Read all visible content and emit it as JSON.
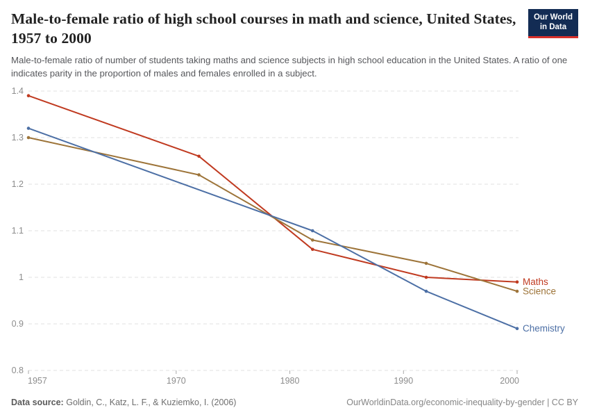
{
  "logo": {
    "line1": "Our World",
    "line2": "in Data"
  },
  "header": {
    "title": "Male-to-female ratio of high school courses in math and science, United States, 1957 to 2000",
    "subtitle": "Male-to-female ratio of number of students taking maths and science subjects in high school education in the United States. A ratio of one indicates parity in the proportion of males and females enrolled in a subject."
  },
  "footer": {
    "source_label": "Data source:",
    "source_text": "Goldin, C., Katz, L. F., & Kuziemko, I. (2006)",
    "credit": "OurWorldinData.org/economic-inequality-by-gender | CC BY"
  },
  "colors": {
    "logo_navy": "#132c54",
    "logo_red": "#d8302b",
    "grid": "#e2e2e2",
    "tick_mark": "#aaaaaa",
    "tick_text": "#8c8c8c",
    "title_text": "#222222",
    "subtitle_text": "#56575b"
  },
  "chart_data": {
    "type": "line",
    "title": "Male-to-female ratio of high school courses in math and science, United States, 1957 to 2000",
    "xlabel": "",
    "ylabel": "",
    "xlim": [
      1957,
      2000
    ],
    "ylim": [
      0.8,
      1.4
    ],
    "xticks": [
      1957,
      1970,
      1980,
      1990,
      2000
    ],
    "yticks": [
      0.8,
      0.9,
      1,
      1.1,
      1.2,
      1.3,
      1.4
    ],
    "grid": "horizontal-dashed",
    "legend_position": "end-of-line-labels",
    "series": [
      {
        "name": "Maths",
        "color": "#c03a20",
        "points": [
          [
            1957,
            1.39
          ],
          [
            1972,
            1.26
          ],
          [
            1982,
            1.06
          ],
          [
            1992,
            1.0
          ],
          [
            2000,
            0.99
          ]
        ]
      },
      {
        "name": "Science",
        "color": "#9d7439",
        "points": [
          [
            1957,
            1.3
          ],
          [
            1972,
            1.22
          ],
          [
            1982,
            1.08
          ],
          [
            1992,
            1.03
          ],
          [
            2000,
            0.97
          ]
        ]
      },
      {
        "name": "Chemistry",
        "color": "#4c6fa5",
        "points": [
          [
            1957,
            1.32
          ],
          [
            1982,
            1.1
          ],
          [
            1992,
            0.97
          ],
          [
            2000,
            0.89
          ]
        ]
      }
    ]
  }
}
